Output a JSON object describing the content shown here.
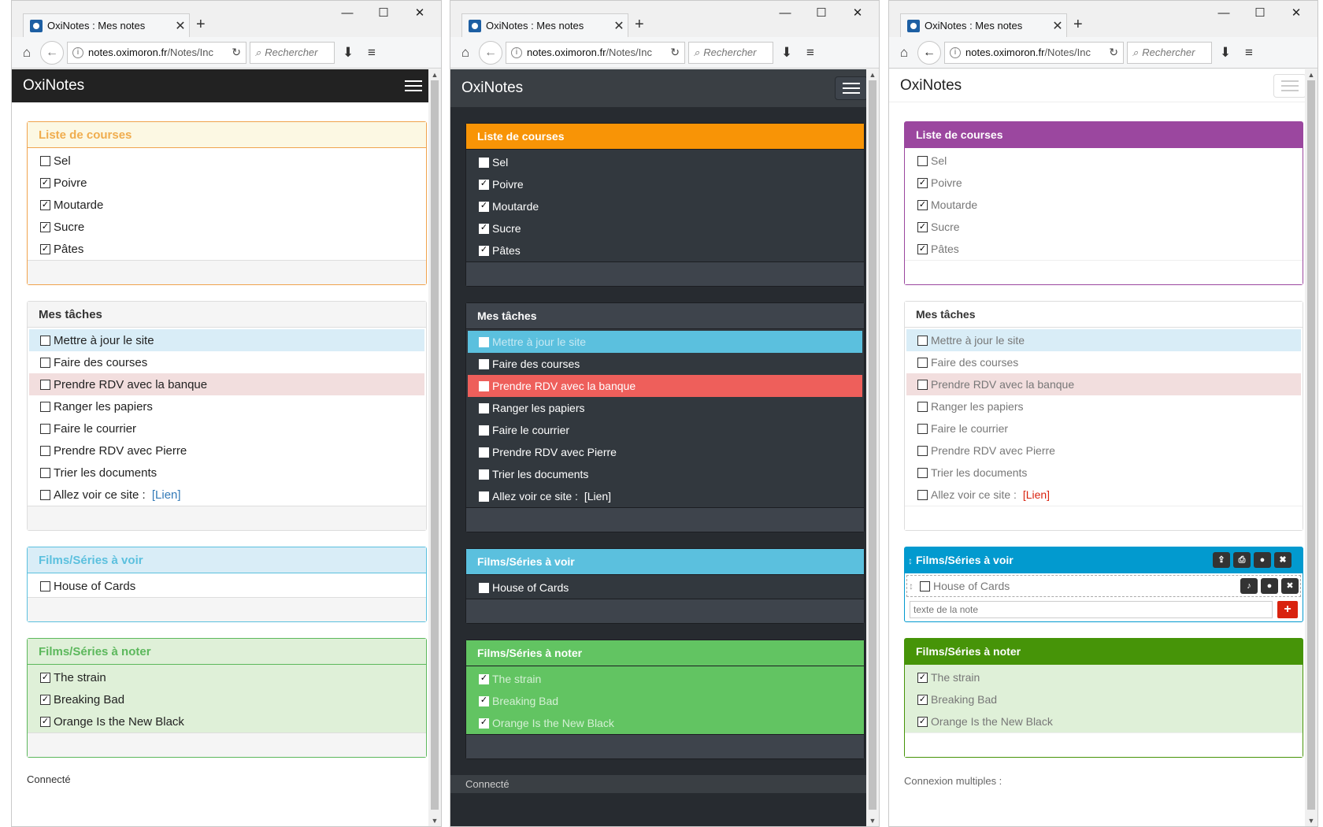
{
  "browser": {
    "tab_title": "OxiNotes : Mes notes",
    "tab_close": "✕",
    "new_tab": "+",
    "minimize": "—",
    "maximize": "☐",
    "close": "✕",
    "url_domain": "notes.oximoron.fr",
    "url_path": "/Notes/Inc",
    "search_placeholder": "Rechercher",
    "home": "⌂",
    "back": "←",
    "info": "i",
    "reload": "↻",
    "search_glyph": "⌕",
    "download": "⬇",
    "menu": "≡",
    "scroll_up": "▲",
    "scroll_down": "▼"
  },
  "app": {
    "brand": "OxiNotes"
  },
  "notes": {
    "courses": {
      "title": "Liste de courses",
      "items": [
        {
          "label": "Sel",
          "check": ""
        },
        {
          "label": "Poivre",
          "check": "✓"
        },
        {
          "label": "Moutarde",
          "check": "✓"
        },
        {
          "label": "Sucre",
          "check": "✓"
        },
        {
          "label": "Pâtes",
          "check": "✓"
        }
      ]
    },
    "taches": {
      "title": "Mes tâches",
      "items": [
        {
          "label": "Mettre à jour le site",
          "check": ""
        },
        {
          "label": "Faire des courses",
          "check": ""
        },
        {
          "label": "Prendre RDV avec la banque",
          "check": ""
        },
        {
          "label": "Ranger les papiers",
          "check": ""
        },
        {
          "label": "Faire le courrier",
          "check": ""
        },
        {
          "label": "Prendre RDV avec Pierre",
          "check": ""
        },
        {
          "label": "Trier les documents",
          "check": ""
        },
        {
          "label": "Allez voir ce site : ",
          "check": "",
          "link": "[Lien]"
        }
      ]
    },
    "films": {
      "title": "Films/Séries à voir",
      "items": [
        {
          "label": "House of Cards",
          "check": ""
        }
      ]
    },
    "noter": {
      "title": "Films/Séries à noter",
      "items": [
        {
          "label": "The strain",
          "check": "✓"
        },
        {
          "label": "Breaking Bad",
          "check": "✓"
        },
        {
          "label": "Orange Is the New Black",
          "check": "✓"
        }
      ]
    }
  },
  "edit": {
    "drag_glyph": "↕",
    "share": "⇪",
    "print": "⎙",
    "color": "●",
    "delete": "✖",
    "bell": "♪",
    "input_placeholder": "texte de la note",
    "add": "+"
  },
  "status": {
    "panel1": "Connecté",
    "panel2": "Connecté",
    "panel3": "Connexion multiples :"
  },
  "colors": {
    "courses_light": "#f0ad4e",
    "films_light": "#5bc0de",
    "noter_light": "#5cb85c",
    "courses_dark": "#f89406",
    "danger_dark": "#ee5f5b",
    "courses_flat": "#9b479f",
    "films_flat": "#029acf",
    "noter_flat": "#469408",
    "link_flat": "#d9230f"
  }
}
